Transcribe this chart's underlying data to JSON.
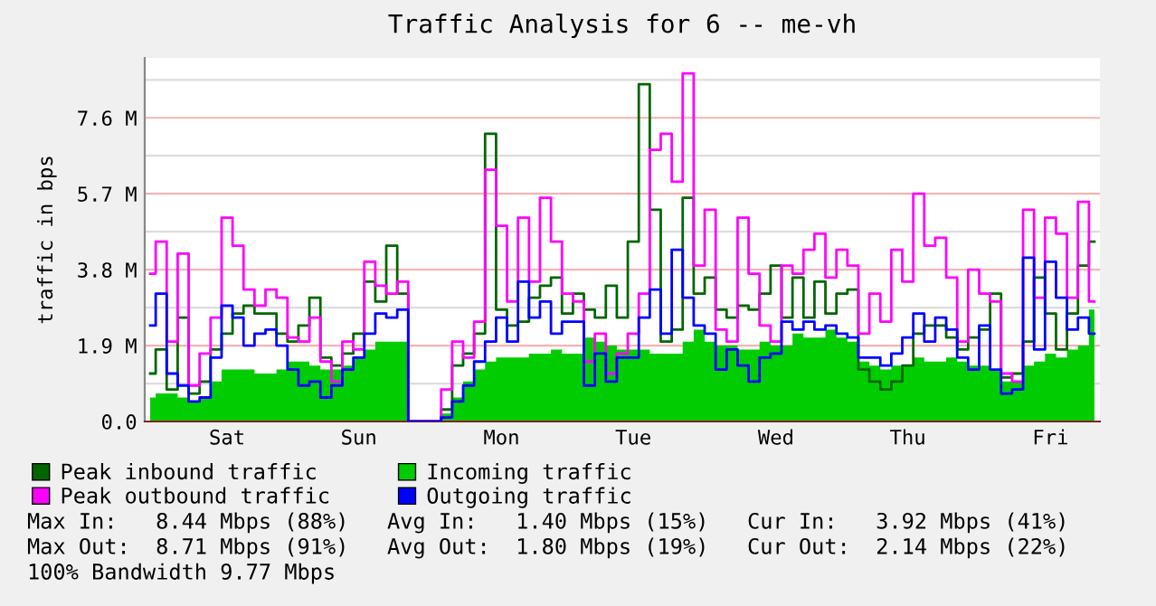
{
  "chart_data": {
    "type": "step",
    "title": "Traffic Analysis for 6 -- me-vh",
    "ylabel": "traffic in bps",
    "categories": [
      null,
      null,
      null,
      null,
      null,
      null,
      null,
      "Sat",
      null,
      null,
      null,
      null,
      null,
      null,
      null,
      null,
      null,
      null,
      null,
      "Sun",
      null,
      null,
      null,
      null,
      null,
      null,
      null,
      null,
      null,
      null,
      null,
      null,
      "Mon",
      null,
      null,
      null,
      null,
      null,
      null,
      null,
      null,
      null,
      null,
      null,
      "Tue",
      null,
      null,
      null,
      null,
      null,
      null,
      null,
      null,
      null,
      null,
      null,
      null,
      "Wed",
      null,
      null,
      null,
      null,
      null,
      null,
      null,
      null,
      null,
      null,
      null,
      "Thu",
      null,
      null,
      null,
      null,
      null,
      null,
      null,
      null,
      null,
      null,
      null,
      null,
      "Fri",
      null,
      null,
      null,
      null
    ],
    "series": [
      {
        "name": "Peak inbound traffic",
        "color": "#006600",
        "values": [
          1.2,
          1.8,
          0.8,
          2.6,
          0.7,
          1.0,
          1.8,
          2.2,
          2.7,
          2.9,
          2.7,
          2.7,
          2.2,
          2.0,
          2.4,
          3.1,
          1.6,
          1.4,
          1.7,
          2.2,
          3.5,
          3.0,
          4.4,
          3.2,
          0,
          0,
          0,
          0.3,
          1.4,
          1.7,
          2.2,
          7.2,
          2.8,
          2.4,
          2.5,
          3.1,
          3.4,
          3.6,
          2.7,
          3.2,
          2.8,
          2.6,
          3.4,
          2.6,
          4.5,
          8.44,
          5.3,
          2.0,
          2.3,
          5.6,
          3.2,
          3.6,
          2.8,
          2.6,
          2.9,
          2.8,
          3.2,
          3.9,
          2.6,
          3.6,
          2.6,
          3.5,
          2.7,
          3.2,
          3.3,
          1.3,
          1.0,
          0.8,
          1.0,
          1.4,
          2.2,
          2.4,
          2.4,
          2.1,
          1.8,
          2.1,
          2.3,
          3.2,
          1.1,
          1.2,
          2.0,
          3.6,
          2.7,
          1.8,
          2.7,
          3.9,
          4.5
        ]
      },
      {
        "name": "Peak outbound traffic",
        "color": "#ff00ff",
        "values": [
          3.7,
          4.5,
          2.0,
          4.2,
          0.9,
          1.7,
          2.6,
          5.1,
          4.4,
          3.3,
          2.9,
          3.3,
          3.1,
          2.1,
          2.0,
          2.6,
          1.5,
          1.0,
          2.0,
          1.8,
          4.0,
          3.4,
          3.2,
          3.5,
          0,
          0,
          0,
          0.8,
          2.0,
          1.6,
          2.5,
          6.3,
          4.9,
          3.0,
          5.1,
          3.5,
          5.6,
          4.5,
          3.2,
          3.0,
          1.5,
          2.2,
          1.2,
          1.7,
          2.2,
          3.2,
          6.8,
          7.2,
          6.0,
          8.71,
          3.9,
          5.3,
          2.3,
          2.0,
          5.1,
          3.7,
          2.4,
          2.0,
          3.9,
          3.7,
          4.3,
          4.7,
          3.6,
          4.3,
          3.9,
          2.2,
          3.2,
          2.5,
          4.3,
          3.5,
          5.7,
          4.4,
          4.6,
          3.6,
          2.0,
          3.8,
          3.2,
          3.0,
          1.2,
          1.0,
          5.3,
          3.1,
          5.1,
          4.7,
          3.1,
          5.5,
          3.0
        ]
      },
      {
        "name": "Incoming traffic",
        "type": "area",
        "color": "#00cc00",
        "values": [
          0.6,
          0.7,
          0.7,
          0.6,
          0.5,
          0.6,
          1.0,
          1.3,
          1.3,
          1.3,
          1.2,
          1.2,
          1.3,
          1.5,
          1.5,
          1.4,
          1.3,
          1.3,
          1.4,
          1.6,
          1.8,
          2.0,
          2.0,
          2.0,
          0,
          0,
          0,
          0.2,
          0.6,
          1.0,
          1.3,
          1.5,
          1.6,
          1.6,
          1.6,
          1.7,
          1.7,
          1.8,
          1.7,
          1.7,
          2.1,
          2.0,
          1.9,
          1.8,
          1.8,
          1.8,
          1.7,
          1.7,
          1.7,
          2.0,
          2.3,
          2.0,
          1.9,
          1.9,
          1.8,
          1.8,
          2.0,
          1.9,
          1.9,
          2.2,
          2.1,
          2.1,
          2.3,
          2.1,
          2.0,
          1.5,
          1.4,
          1.3,
          1.4,
          1.4,
          1.6,
          1.5,
          1.5,
          1.6,
          1.5,
          1.4,
          1.4,
          1.3,
          1.0,
          1.0,
          1.4,
          1.5,
          1.7,
          1.6,
          1.8,
          1.9,
          2.8
        ]
      },
      {
        "name": "Outgoing traffic",
        "color": "#0000ff",
        "values": [
          2.4,
          3.2,
          1.2,
          0.9,
          0.5,
          0.6,
          1.6,
          2.9,
          2.6,
          1.9,
          2.2,
          2.3,
          1.9,
          1.3,
          0.9,
          1.0,
          0.6,
          0.9,
          1.3,
          1.6,
          2.2,
          2.7,
          2.6,
          2.8,
          0,
          0,
          0,
          0.1,
          0.5,
          0.9,
          1.5,
          2.0,
          2.6,
          2.0,
          3.5,
          2.6,
          3.0,
          2.2,
          2.5,
          2.5,
          0.9,
          1.7,
          1.0,
          1.6,
          1.6,
          2.6,
          3.3,
          2.2,
          4.3,
          3.1,
          2.4,
          2.2,
          1.3,
          1.8,
          1.4,
          1.0,
          1.6,
          1.7,
          2.5,
          2.3,
          2.5,
          2.3,
          2.4,
          2.2,
          2.1,
          1.6,
          1.6,
          1.4,
          1.7,
          2.1,
          2.7,
          2.0,
          2.6,
          2.3,
          1.6,
          1.3,
          2.4,
          1.3,
          0.7,
          0.8,
          4.1,
          1.8,
          4.0,
          3.1,
          2.3,
          2.6,
          2.2
        ]
      }
    ],
    "ylim": [
      0,
      9.1
    ],
    "yticks": [
      {
        "value": 0,
        "label": "0.0"
      },
      {
        "value": 0.95,
        "label": null
      },
      {
        "value": 1.9,
        "label": "1.9 M"
      },
      {
        "value": 2.85,
        "label": null
      },
      {
        "value": 3.8,
        "label": "3.8 M"
      },
      {
        "value": 4.75,
        "label": null
      },
      {
        "value": 5.7,
        "label": "5.7 M"
      },
      {
        "value": 6.65,
        "label": null
      },
      {
        "value": 7.6,
        "label": "7.6 M"
      },
      {
        "value": 8.55,
        "label": null
      }
    ],
    "grid": "y",
    "legend": "bottom",
    "annotations": [
      "Max In:   8.44 Mbps (88%)   Avg In:   1.40 Mbps (15%)   Cur In:   3.92 Mbps (41%)",
      "Max Out:  8.71 Mbps (91%)   Avg Out:  1.80 Mbps (19%)   Cur Out:  2.14 Mbps (22%)",
      "100% Bandwidth 9.77 Mbps"
    ]
  }
}
